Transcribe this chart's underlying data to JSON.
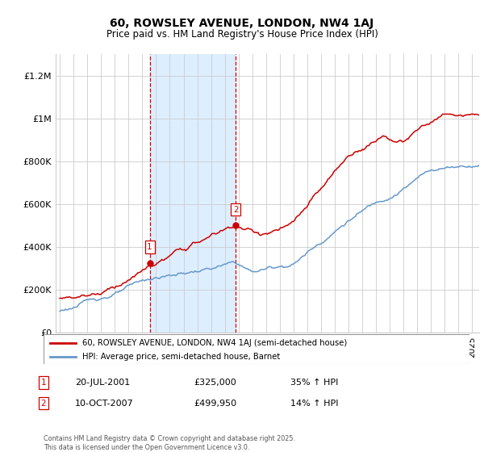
{
  "title": "60, ROWSLEY AVENUE, LONDON, NW4 1AJ",
  "subtitle": "Price paid vs. HM Land Registry's House Price Index (HPI)",
  "footer": "Contains HM Land Registry data © Crown copyright and database right 2025.\nThis data is licensed under the Open Government Licence v3.0.",
  "legend_line1": "60, ROWSLEY AVENUE, LONDON, NW4 1AJ (semi-detached house)",
  "legend_line2": "HPI: Average price, semi-detached house, Barnet",
  "transaction1_label": "1",
  "transaction1_date": "20-JUL-2001",
  "transaction1_price": "£325,000",
  "transaction1_hpi": "35% ↑ HPI",
  "transaction2_label": "2",
  "transaction2_date": "10-OCT-2007",
  "transaction2_price": "£499,950",
  "transaction2_hpi": "14% ↑ HPI",
  "red_color": "#cc0000",
  "blue_color": "#6699cc",
  "shade_color": "#ddeeff",
  "background_color": "#ffffff",
  "grid_color": "#cccccc",
  "ylim_max": 1300000,
  "yticks": [
    0,
    200000,
    400000,
    600000,
    800000,
    1000000,
    1200000
  ],
  "ytick_labels": [
    "£0",
    "£200K",
    "£400K",
    "£600K",
    "£800K",
    "£1M",
    "£1.2M"
  ],
  "t1_year": 2001.542,
  "t2_year": 2007.792,
  "t1_price": 325000,
  "t2_price": 499950
}
